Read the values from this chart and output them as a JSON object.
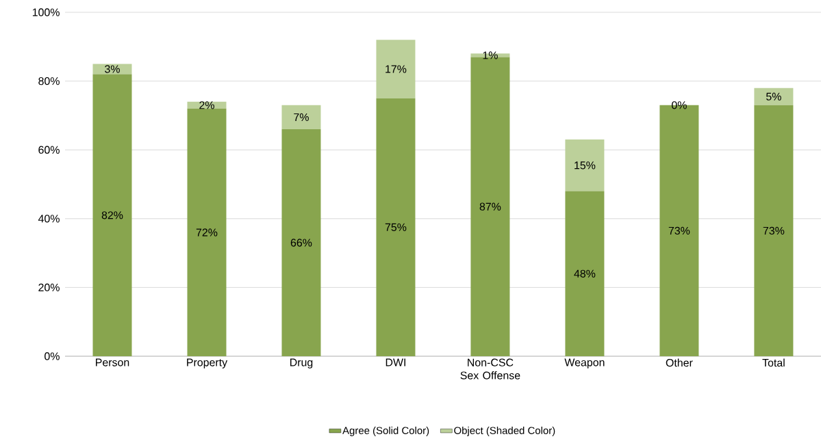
{
  "chart_data": {
    "type": "bar",
    "stacked": true,
    "categories": [
      "Person",
      "Property",
      "Drug",
      "DWI",
      "Non-CSC Sex Offense",
      "Weapon",
      "Other",
      "Total"
    ],
    "series": [
      {
        "name": "Agree (Solid Color)",
        "color": "#88a54e",
        "values": [
          82,
          72,
          66,
          75,
          87,
          48,
          73,
          73
        ],
        "value_labels": [
          "82%",
          "72%",
          "66%",
          "75%",
          "87%",
          "48%",
          "73%",
          "73%"
        ]
      },
      {
        "name": "Object (Shaded Color)",
        "color": "#bcd09a",
        "values": [
          3,
          2,
          7,
          17,
          1,
          15,
          0,
          5
        ],
        "value_labels": [
          "3%",
          "2%",
          "7%",
          "17%",
          "1%",
          "15%",
          "0%",
          "5%"
        ]
      }
    ],
    "ylim": [
      0,
      100
    ],
    "yticks": [
      {
        "value": 0,
        "label": "0%"
      },
      {
        "value": 20,
        "label": "20%"
      },
      {
        "value": 40,
        "label": "40%"
      },
      {
        "value": 60,
        "label": "60%"
      },
      {
        "value": 80,
        "label": "80%"
      },
      {
        "value": 100,
        "label": "100%"
      }
    ],
    "grid": "y",
    "legend": "bottom"
  }
}
